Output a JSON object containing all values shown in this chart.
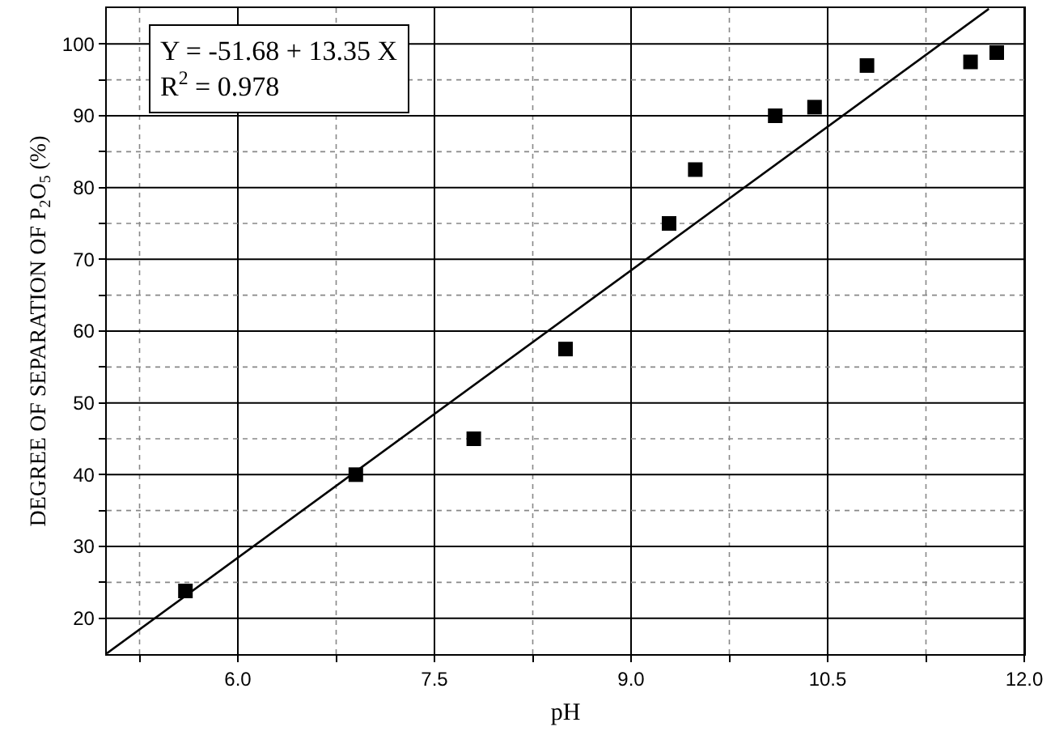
{
  "chart_data": {
    "type": "scatter",
    "xlabel": "pH",
    "ylabel": "DEGREE OF SEPARATION OF P$_{2}$O$_{5}$ (%)",
    "annotations": [
      "Y = -51.68 + 13.35 X",
      "R$^{2}$ = 0.978"
    ],
    "x": [
      5.6,
      6.9,
      7.8,
      8.5,
      9.29,
      9.49,
      10.1,
      10.4,
      10.8,
      11.59,
      11.79
    ],
    "series": [
      {
        "color": "#000000",
        "marker": "square",
        "values": [
          23.8,
          40,
          45,
          57.5,
          75,
          82.5,
          90,
          91.2,
          97,
          97.5,
          98.8
        ]
      },
      {
        "type": "line",
        "color": "#000000",
        "marker": "none",
        "line_style": "solid",
        "x": [
          5,
          11.73
        ],
        "values": [
          15.1,
          104.9
        ]
      }
    ],
    "xlim": [
      5,
      12
    ],
    "ylim": [
      15,
      105
    ],
    "xticks": [
      {
        "value": 5.25,
        "label": null
      },
      {
        "value": 6,
        "label": "6.0"
      },
      {
        "value": 6.75,
        "label": null
      },
      7.5,
      {
        "value": 8.25,
        "label": null
      },
      {
        "value": 9,
        "label": "9.0"
      },
      {
        "value": 9.75,
        "label": null
      },
      10.5,
      {
        "value": 11.25,
        "label": null
      },
      {
        "value": 12,
        "label": "12.0"
      }
    ],
    "yticks": [
      20,
      {
        "value": 25,
        "label": null
      },
      30,
      {
        "value": 35,
        "label": null
      },
      40,
      {
        "value": 45,
        "label": null
      },
      50,
      {
        "value": 55,
        "label": null
      },
      60,
      {
        "value": 65,
        "label": null
      },
      70,
      {
        "value": 75,
        "label": null
      },
      80,
      {
        "value": 85,
        "label": null
      },
      90,
      {
        "value": 95,
        "label": null
      },
      100
    ],
    "grid": true
  }
}
